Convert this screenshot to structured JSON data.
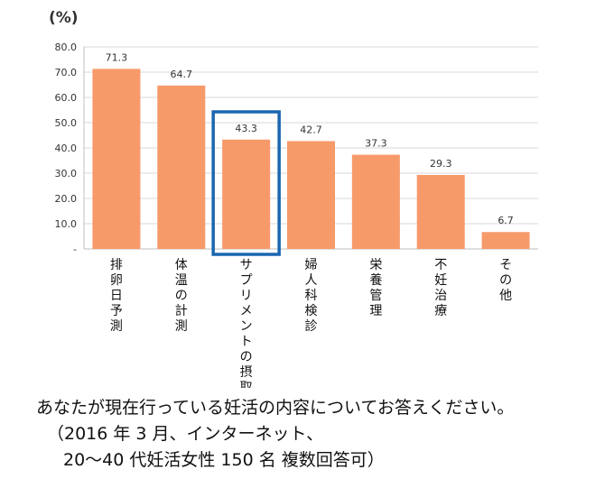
{
  "chart_data": {
    "type": "bar",
    "unit_label": "(%)",
    "categories": [
      "排卵日予測",
      "体温の計測",
      "サプリメントの摂取",
      "婦人科検診",
      "栄養管理",
      "不妊治療",
      "その他"
    ],
    "values": [
      71.3,
      64.7,
      43.3,
      42.7,
      37.3,
      29.3,
      6.7
    ],
    "value_labels": [
      "71.3",
      "64.7",
      "43.3",
      "42.7",
      "37.3",
      "29.3",
      "6.7"
    ],
    "y_ticks": [
      "80.0",
      "70.0",
      "60.0",
      "50.0",
      "40.0",
      "30.0",
      "20.0",
      "10.0",
      "-"
    ],
    "ylim": [
      0,
      80
    ],
    "grid": true,
    "highlighted_category": "サプリメントの摂取",
    "bar_color": "#f79a6a",
    "highlight_color": "#1a66b0",
    "grid_color": "#d9d9d9"
  },
  "caption": {
    "line1": "あなたが現在行っている妊活の内容についてお答えください。",
    "line2": "（2016 年 3 月、インターネット、",
    "line3": "20～40 代妊活女性 150 名  複数回答可）"
  }
}
